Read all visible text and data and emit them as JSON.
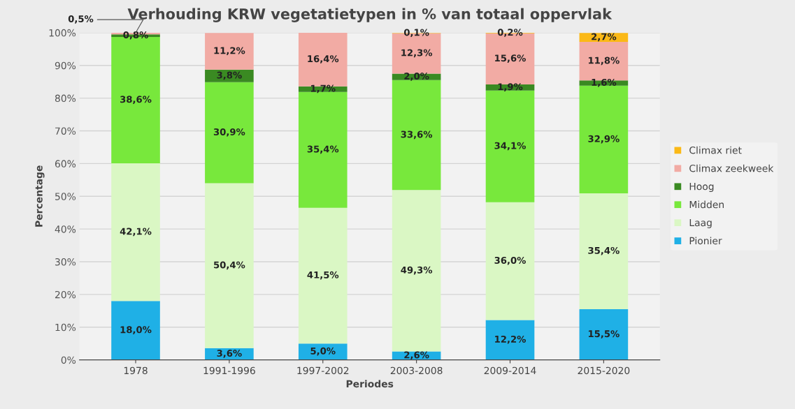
{
  "chart_data": {
    "type": "bar",
    "stacked": true,
    "title": "Verhouding KRW vegetatietypen in % van totaal oppervlak",
    "xlabel": "Periodes",
    "ylabel": "Percentage",
    "categories": [
      "1978",
      "1991-1996",
      "1997-2002",
      "2003-2008",
      "2009-2014",
      "2015-2020"
    ],
    "series": [
      {
        "name": "Pionier",
        "color": "#1fb0e6",
        "values": [
          18.0,
          3.6,
          5.0,
          2.6,
          12.2,
          15.5
        ],
        "value_labels": [
          "18,0%",
          "3,6%",
          "5,0%",
          "2,6%",
          "12,2%",
          "15,5%"
        ]
      },
      {
        "name": "Laag",
        "color": "#daf7c4",
        "values": [
          42.1,
          50.4,
          41.5,
          49.3,
          36.0,
          35.4
        ],
        "value_labels": [
          "42,1%",
          "50,4%",
          "41,5%",
          "49,3%",
          "36,0%",
          "35,4%"
        ]
      },
      {
        "name": "Midden",
        "color": "#78e83c",
        "values": [
          38.6,
          30.9,
          35.4,
          33.6,
          34.1,
          32.9
        ],
        "value_labels": [
          "38,6%",
          "30,9%",
          "35,4%",
          "33,6%",
          "34,1%",
          "32,9%"
        ]
      },
      {
        "name": "Hoog",
        "color": "#3a8a22",
        "values": [
          0.8,
          3.8,
          1.7,
          2.0,
          1.9,
          1.6
        ],
        "value_labels": [
          "0,8%",
          "3,8%",
          "1,7%",
          "2,0%",
          "1,9%",
          "1,6%"
        ]
      },
      {
        "name": "Climax zeekweek",
        "color": "#f2aba4",
        "values": [
          0.5,
          11.2,
          16.4,
          12.3,
          15.6,
          11.8
        ],
        "value_labels": [
          "0,5%",
          "11,2%",
          "16,4%",
          "12,3%",
          "15,6%",
          "11,8%"
        ]
      },
      {
        "name": "Climax riet",
        "color": "#fbb917",
        "values": [
          null,
          null,
          null,
          0.1,
          0.2,
          2.7
        ],
        "value_labels": [
          null,
          null,
          null,
          "0,1%",
          "0,2%",
          "2,7%"
        ]
      }
    ],
    "ylim": [
      0,
      100
    ],
    "yticks": [
      {
        "value": 0,
        "label": "0%"
      },
      {
        "value": 10,
        "label": "10%"
      },
      {
        "value": 20,
        "label": "20%"
      },
      {
        "value": 30,
        "label": "30%"
      },
      {
        "value": 40,
        "label": "40%"
      },
      {
        "value": 50,
        "label": "50%"
      },
      {
        "value": 60,
        "label": "60%"
      },
      {
        "value": 70,
        "label": "70%"
      },
      {
        "value": 80,
        "label": "80%"
      },
      {
        "value": 90,
        "label": "90%"
      },
      {
        "value": 100,
        "label": "100%"
      }
    ],
    "grid": "y",
    "legend": "right"
  }
}
